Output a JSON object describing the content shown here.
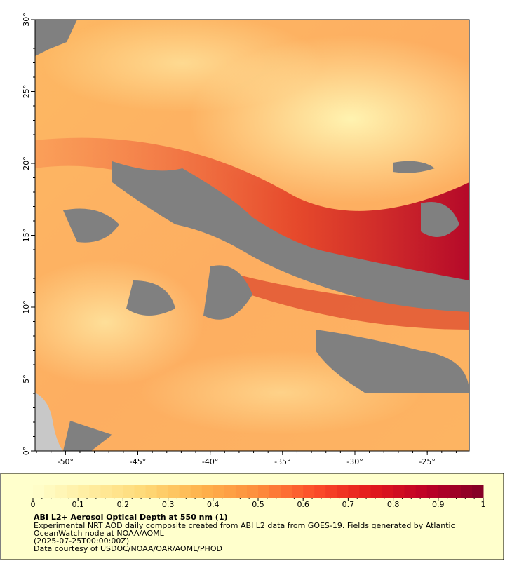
{
  "map": {
    "xlim": [
      -52.1,
      -22.1
    ],
    "ylim": [
      0,
      30
    ],
    "xticks": [
      {
        "value": -50,
        "label": "-50°"
      },
      {
        "value": -45,
        "label": "-45°"
      },
      {
        "value": -40,
        "label": "-40°"
      },
      {
        "value": -35,
        "label": "-35°"
      },
      {
        "value": -30,
        "label": "-30°"
      },
      {
        "value": -25,
        "label": "-25°"
      }
    ],
    "yticks": [
      {
        "value": 0,
        "label": "0°"
      },
      {
        "value": 5,
        "label": "5°"
      },
      {
        "value": 10,
        "label": "10°"
      },
      {
        "value": 15,
        "label": "15°"
      },
      {
        "value": 20,
        "label": "20°"
      },
      {
        "value": 25,
        "label": "25°"
      },
      {
        "value": 30,
        "label": "30°"
      }
    ]
  },
  "colorbar": {
    "title": "ABI L2+ Aerosol Optical Depth at 550 nm (1)",
    "lim": [
      0,
      1
    ],
    "ticks": [
      0,
      0.1,
      0.2,
      0.3,
      0.4,
      0.5,
      0.6,
      0.7,
      0.8,
      0.9,
      1
    ],
    "colors": [
      "#ffffcc",
      "#ffeda0",
      "#fed976",
      "#feb24c",
      "#fd8d3c",
      "#fc4e2a",
      "#e31a1c",
      "#bd0026",
      "#800026"
    ]
  },
  "notes": [
    "Experimental NRT AOD daily composite created from ABI L2 data from GOES-19. Fields generated by Atlantic",
    "OceanWatch node at NOAA/AOML",
    "(2025-07-25T00:00:00Z)",
    "Data courtesy of USDOC/NOAA/OAR/AOML/PHOD"
  ]
}
